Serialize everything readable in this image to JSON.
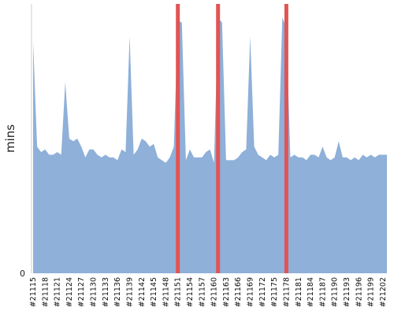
{
  "chart_data": {
    "type": "area",
    "ylabel": "mins",
    "xlabel": "",
    "ylim": [
      0,
      100
    ],
    "y_tick_labels": [
      "0"
    ],
    "x_tick_labels": [
      "#21115",
      "#21118",
      "#21121",
      "#21124",
      "#21127",
      "#21130",
      "#21133",
      "#21136",
      "#21139",
      "#21142",
      "#21145",
      "#21148",
      "#21151",
      "#21154",
      "#21157",
      "#21160",
      "#21163",
      "#21166",
      "#21169",
      "#21172",
      "#21175",
      "#21178",
      "#21181",
      "#21184",
      "#21187",
      "#21190",
      "#21193",
      "#21196",
      "#21199",
      "#21202"
    ],
    "build_range": [
      21115,
      21203
    ],
    "area_color": "#8eb0d9",
    "marker_color": "#e05555",
    "series": [
      {
        "x": [
          21115,
          21116,
          21117,
          21118,
          21119,
          21120,
          21121,
          21122,
          21123,
          21124,
          21125,
          21126,
          21127,
          21128,
          21129,
          21130,
          21131,
          21132,
          21133,
          21134,
          21135,
          21136,
          21137,
          21138,
          21139,
          21140,
          21141,
          21142,
          21143,
          21144,
          21145,
          21146,
          21147,
          21148,
          21149,
          21150,
          21151,
          21152,
          21153,
          21154,
          21155,
          21156,
          21157,
          21158,
          21159,
          21160,
          21161,
          21162,
          21163,
          21164,
          21165,
          21166,
          21167,
          21168,
          21169,
          21170,
          21171,
          21172,
          21173,
          21174,
          21175,
          21176,
          21177,
          21178,
          21179,
          21180,
          21181,
          21182,
          21183,
          21184,
          21185,
          21186,
          21187,
          21188,
          21189,
          21190,
          21191,
          21192,
          21193,
          21194,
          21195,
          21196,
          21197,
          21198,
          21199,
          21200,
          21201,
          21202,
          21203
        ],
        "values": [
          86,
          47,
          45,
          46,
          44,
          44,
          45,
          44,
          71,
          50,
          49,
          50,
          47,
          43,
          46,
          46,
          44,
          43,
          44,
          43,
          43,
          42,
          46,
          45,
          88,
          44,
          46,
          50,
          49,
          47,
          48,
          43,
          42,
          41,
          43,
          47,
          94,
          93,
          42,
          46,
          43,
          43,
          43,
          45,
          46,
          41,
          95,
          93,
          42,
          42,
          42,
          43,
          45,
          46,
          88,
          47,
          44,
          43,
          42,
          44,
          43,
          44,
          95,
          91,
          43,
          44,
          43,
          43,
          42,
          44,
          44,
          43,
          47,
          43,
          42,
          43,
          49,
          43,
          43,
          42,
          43,
          42,
          44,
          43,
          44,
          43,
          44,
          44,
          44
        ]
      }
    ],
    "markers": [
      21151,
      21161,
      21178
    ]
  }
}
